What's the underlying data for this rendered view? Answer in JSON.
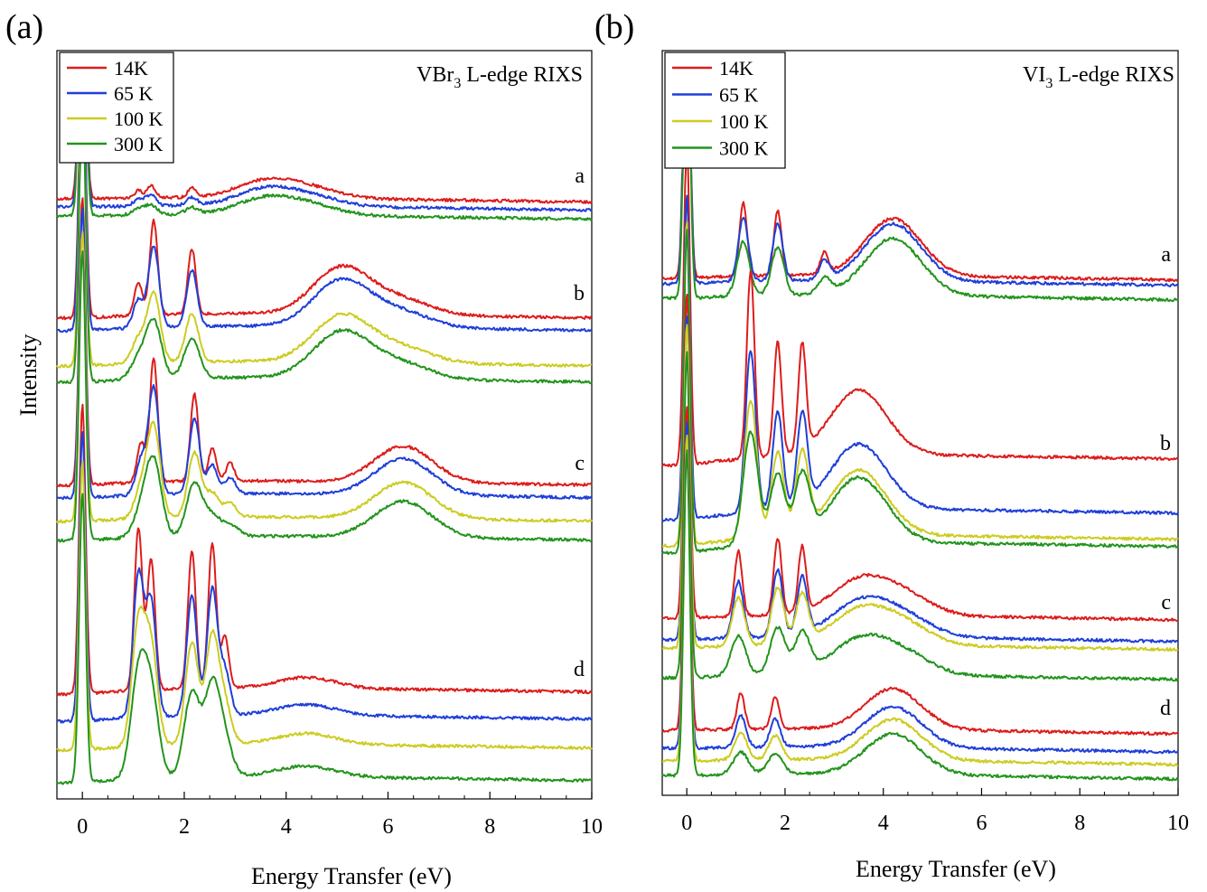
{
  "figure": {
    "panel_labels": [
      "(a)",
      "(b)"
    ],
    "ylabel": "Intensity",
    "xlabel_a": "Energy Transfer (eV)",
    "xlabel_b": "Energy Transfer  (eV)"
  },
  "colors": {
    "14K": "#dd1c1c",
    "65K": "#1f3fd8",
    "100K": "#cccc22",
    "300K": "#22941c"
  },
  "chart_data": [
    {
      "type": "line",
      "title_main": "VBr",
      "title_sub": "3",
      "title_rest": " L-edge RIXS",
      "xlabel": "Energy Transfer (eV)",
      "ylabel": "Intensity",
      "xlim": [
        -0.5,
        10
      ],
      "xticks": [
        0,
        2,
        4,
        6,
        8,
        10
      ],
      "legend": [
        "14K",
        "65 K",
        "100 K",
        "300 K"
      ],
      "legend_position": "top-left",
      "groups": [
        {
          "label": "a",
          "series": [
            "14K",
            "65 K",
            "300 K"
          ],
          "peaks": [
            [
              1.1,
              0.2
            ],
            [
              1.35,
              0.35
            ],
            [
              2.15,
              0.25
            ],
            [
              3.6,
              0.45
            ],
            [
              4.5,
              0.25
            ]
          ],
          "baseline": 0.05
        },
        {
          "label": "b",
          "series": [
            "14K",
            "65 K",
            "100 K",
            "300 K"
          ],
          "peaks": [
            [
              1.1,
              0.9
            ],
            [
              1.4,
              2.6
            ],
            [
              2.15,
              1.8
            ],
            [
              5.1,
              1.3
            ],
            [
              6.3,
              0.4
            ]
          ],
          "baseline": 0.15
        },
        {
          "label": "c",
          "series": [
            "14K",
            "65 K",
            "100 K",
            "300 K"
          ],
          "peaks": [
            [
              1.15,
              1.1
            ],
            [
              1.4,
              3.4
            ],
            [
              2.2,
              2.4
            ],
            [
              2.55,
              0.9
            ],
            [
              2.9,
              0.5
            ],
            [
              6.3,
              1.0
            ]
          ],
          "baseline": 0.15
        },
        {
          "label": "d",
          "series": [
            "14K",
            "65 K",
            "100 K",
            "300 K"
          ],
          "peaks": [
            [
              1.1,
              4.5
            ],
            [
              1.35,
              3.6
            ],
            [
              2.15,
              3.8
            ],
            [
              2.55,
              4.0
            ],
            [
              2.8,
              1.4
            ],
            [
              4.4,
              0.3
            ]
          ],
          "baseline": 0.2
        }
      ]
    },
    {
      "type": "line",
      "title_main": "VI",
      "title_sub": "3",
      "title_rest": " L-edge RIXS",
      "xlabel": "Energy Transfer  (eV)",
      "ylabel": "Intensity",
      "xlim": [
        -0.5,
        10
      ],
      "xticks": [
        0,
        2,
        4,
        6,
        8,
        10
      ],
      "legend": [
        "14K",
        "65 K",
        "100 K",
        "300 K"
      ],
      "legend_position": "top-left",
      "groups": [
        {
          "label": "a",
          "series": [
            "14K",
            "65 K",
            "300 K"
          ],
          "peaks": [
            [
              1.15,
              1.8
            ],
            [
              1.85,
              1.6
            ],
            [
              2.8,
              0.5
            ],
            [
              4.2,
              1.4
            ]
          ],
          "baseline": 0.1
        },
        {
          "label": "b",
          "series": [
            "14K",
            "65 K",
            "100 K",
            "300 K"
          ],
          "peaks": [
            [
              1.3,
              4.6
            ],
            [
              1.85,
              2.8
            ],
            [
              2.35,
              2.6
            ],
            [
              3.5,
              1.6
            ]
          ],
          "baseline": 0.3
        },
        {
          "label": "c",
          "series": [
            "14K",
            "65 K",
            "100 K",
            "300 K"
          ],
          "peaks": [
            [
              1.05,
              1.6
            ],
            [
              1.85,
              1.9
            ],
            [
              2.35,
              1.6
            ],
            [
              3.5,
              0.8
            ],
            [
              4.4,
              0.5
            ]
          ],
          "baseline": 0.1
        },
        {
          "label": "d",
          "series": [
            "14K",
            "65 K",
            "100 K",
            "300 K"
          ],
          "peaks": [
            [
              1.1,
              0.9
            ],
            [
              1.8,
              0.8
            ],
            [
              4.2,
              1.0
            ]
          ],
          "baseline": 0.05
        }
      ]
    }
  ]
}
